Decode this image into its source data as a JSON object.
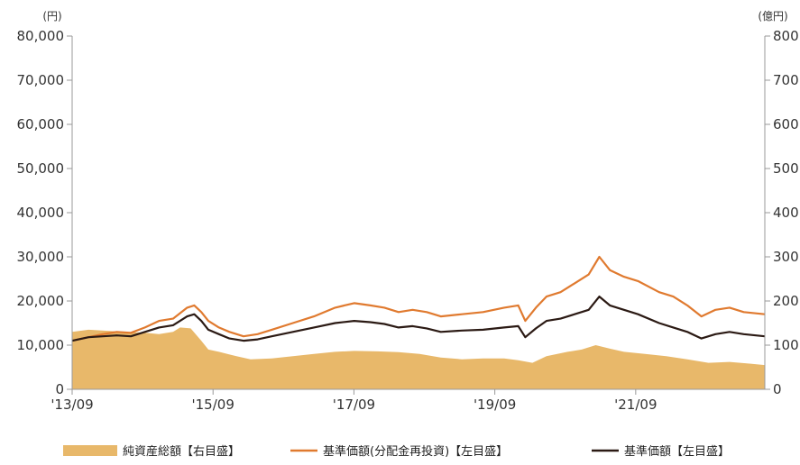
{
  "chart_data": {
    "type": "line",
    "title": "",
    "y_left": {
      "unit": "(円)",
      "ticks": [
        "80,000",
        "70,000",
        "60,000",
        "50,000",
        "40,000",
        "30,000",
        "20,000",
        "10,000",
        "0"
      ],
      "ylim": [
        0,
        80000
      ]
    },
    "y_right": {
      "unit": "(億円)",
      "ticks": [
        "800",
        "700",
        "600",
        "500",
        "400",
        "300",
        "200",
        "100",
        "0"
      ],
      "ylim": [
        0,
        800
      ]
    },
    "x_tick_labels": [
      "'13/09",
      "'15/09",
      "'17/09",
      "'19/09",
      "'21/09"
    ],
    "x_ticks": [
      2013.667,
      2015.667,
      2017.667,
      2019.667,
      2021.667
    ],
    "xlim": [
      2013.667,
      2023.5
    ],
    "series": [
      {
        "name": "純資産総額【右目盛】",
        "kind": "area",
        "axis": "right",
        "color": "#e8b86a",
        "x": [
          2013.67,
          2013.9,
          2014.2,
          2014.4,
          2014.7,
          2014.9,
          2015.1,
          2015.2,
          2015.35,
          2015.5,
          2015.6,
          2015.75,
          2016.0,
          2016.2,
          2016.5,
          2016.8,
          2017.1,
          2017.4,
          2017.67,
          2018.0,
          2018.3,
          2018.6,
          2018.9,
          2019.2,
          2019.5,
          2019.8,
          2020.0,
          2020.2,
          2020.4,
          2020.7,
          2020.9,
          2021.1,
          2021.3,
          2021.5,
          2021.8,
          2022.1,
          2022.4,
          2022.7,
          2023.0,
          2023.3,
          2023.5
        ],
        "values": [
          130,
          135,
          132,
          130,
          128,
          125,
          130,
          140,
          138,
          110,
          90,
          85,
          75,
          68,
          70,
          75,
          80,
          85,
          87,
          86,
          84,
          80,
          72,
          68,
          70,
          70,
          66,
          60,
          75,
          85,
          90,
          100,
          92,
          85,
          80,
          75,
          68,
          60,
          62,
          58,
          55
        ]
      },
      {
        "name": "基準価額(分配金再投資)【左目盛】",
        "kind": "line",
        "axis": "left",
        "color": "#e07a2f",
        "x": [
          2013.67,
          2013.9,
          2014.1,
          2014.3,
          2014.5,
          2014.7,
          2014.9,
          2015.1,
          2015.3,
          2015.4,
          2015.5,
          2015.6,
          2015.75,
          2015.9,
          2016.1,
          2016.3,
          2016.5,
          2016.8,
          2017.1,
          2017.4,
          2017.67,
          2017.9,
          2018.1,
          2018.3,
          2018.5,
          2018.7,
          2018.9,
          2019.2,
          2019.5,
          2019.8,
          2020.0,
          2020.1,
          2020.25,
          2020.4,
          2020.6,
          2020.8,
          2021.0,
          2021.15,
          2021.3,
          2021.5,
          2021.7,
          2022.0,
          2022.2,
          2022.4,
          2022.6,
          2022.8,
          2023.0,
          2023.2,
          2023.5
        ],
        "values": [
          11000,
          11800,
          12500,
          13000,
          12800,
          14000,
          15500,
          16000,
          18500,
          19000,
          17500,
          15500,
          14000,
          13000,
          12000,
          12500,
          13500,
          15000,
          16500,
          18500,
          19500,
          19000,
          18500,
          17500,
          18000,
          17500,
          16500,
          17000,
          17500,
          18500,
          19000,
          15500,
          18500,
          21000,
          22000,
          24000,
          26000,
          30000,
          27000,
          25500,
          24500,
          22000,
          21000,
          19000,
          16500,
          18000,
          18500,
          17500,
          17000
        ]
      },
      {
        "name": "基準価額【左目盛】",
        "kind": "line",
        "axis": "left",
        "color": "#2b1a14",
        "x": [
          2013.67,
          2013.9,
          2014.1,
          2014.3,
          2014.5,
          2014.7,
          2014.9,
          2015.1,
          2015.3,
          2015.4,
          2015.5,
          2015.6,
          2015.75,
          2015.9,
          2016.1,
          2016.3,
          2016.5,
          2016.8,
          2017.1,
          2017.4,
          2017.67,
          2017.9,
          2018.1,
          2018.3,
          2018.5,
          2018.7,
          2018.9,
          2019.2,
          2019.5,
          2019.8,
          2020.0,
          2020.1,
          2020.25,
          2020.4,
          2020.6,
          2020.8,
          2021.0,
          2021.15,
          2021.3,
          2021.5,
          2021.7,
          2022.0,
          2022.2,
          2022.4,
          2022.6,
          2022.8,
          2023.0,
          2023.2,
          2023.5
        ],
        "values": [
          11000,
          11800,
          12000,
          12200,
          12000,
          13000,
          14000,
          14500,
          16500,
          17000,
          15500,
          13500,
          12500,
          11500,
          11000,
          11300,
          12000,
          13000,
          14000,
          15000,
          15500,
          15200,
          14800,
          14000,
          14300,
          13800,
          13000,
          13300,
          13500,
          14000,
          14300,
          11800,
          13800,
          15500,
          16000,
          17000,
          18000,
          21000,
          19000,
          18000,
          17000,
          15000,
          14000,
          13000,
          11500,
          12500,
          13000,
          12500,
          12000
        ]
      }
    ],
    "legend_position": "bottom",
    "grid": false
  }
}
